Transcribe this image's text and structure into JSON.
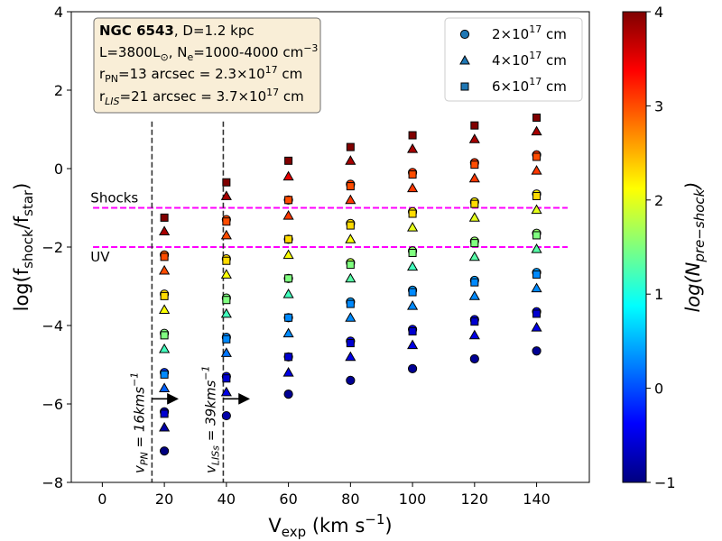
{
  "chart_data": {
    "type": "scatter",
    "xlabel_main": "V",
    "xlabel_sub": "exp",
    "xlabel_unit": " (km s",
    "xlabel_unit_sup": "−1",
    "xlabel_close": ")",
    "ylabel_main": "log(f",
    "ylabel_sub1": "shock",
    "ylabel_mid": "/f",
    "ylabel_sub2": "star",
    "ylabel_close": ")",
    "xlim": [
      -10,
      157
    ],
    "ylim": [
      -8,
      4
    ],
    "xticks": [
      0,
      20,
      40,
      60,
      80,
      100,
      120,
      140
    ],
    "yticks": [
      -8,
      -6,
      -4,
      -2,
      0,
      2,
      4
    ],
    "info_box": {
      "line1_bold": "NGC 6543",
      "line1_rest": ",        D=1.2 kpc",
      "line2": "L=3800L⊙, Ne=1000-4000 cm⁻³",
      "line3": "rPN=13 arcsec  = 2.3×10¹⁷ cm",
      "line4": "rLIS=21 arcsec = 3.7×10¹⁷ cm"
    },
    "legend": [
      {
        "marker": "circle",
        "label_base": "2×10",
        "label_exp": "17",
        "label_unit": " cm"
      },
      {
        "marker": "triangle",
        "label_base": "4×10",
        "label_exp": "17",
        "label_unit": " cm"
      },
      {
        "marker": "square",
        "label_base": "6×10",
        "label_exp": "17",
        "label_unit": " cm"
      }
    ],
    "thresholds": [
      {
        "y": -1,
        "label": "Shocks",
        "color": "#ff00ff"
      },
      {
        "y": -2,
        "label": "UV",
        "color": "#ff00ff"
      }
    ],
    "vlines": [
      {
        "x": 16,
        "label": "vPN = 16kms⁻¹"
      },
      {
        "x": 39,
        "label": "vLISs = 39kms⁻¹"
      }
    ],
    "colorbar": {
      "label": "log(Npre−shock)",
      "range": [
        -1,
        4
      ],
      "ticks": [
        -1,
        0,
        1,
        2,
        3,
        4
      ]
    },
    "series": [
      {
        "marker": "circle",
        "points": [
          [
            20,
            -7.2,
            -1.0
          ],
          [
            20,
            -6.2,
            -0.8
          ],
          [
            20,
            -5.2,
            -0.1
          ],
          [
            20,
            -4.2,
            1.5
          ],
          [
            20,
            -3.2,
            2.3
          ],
          [
            20,
            -2.2,
            2.9
          ],
          [
            40,
            -6.3,
            -0.8
          ],
          [
            40,
            -5.3,
            -0.5
          ],
          [
            40,
            -4.3,
            0.3
          ],
          [
            40,
            -3.3,
            1.5
          ],
          [
            40,
            -2.3,
            2.3
          ],
          [
            40,
            -1.3,
            3.0
          ],
          [
            60,
            -5.75,
            -0.9
          ],
          [
            60,
            -4.8,
            -0.4
          ],
          [
            60,
            -3.8,
            0.4
          ],
          [
            60,
            -2.8,
            1.8
          ],
          [
            60,
            -1.8,
            2.3
          ],
          [
            60,
            -0.8,
            3.1
          ],
          [
            80,
            -5.4,
            -0.9
          ],
          [
            80,
            -4.4,
            -0.5
          ],
          [
            80,
            -3.4,
            0.4
          ],
          [
            80,
            -2.4,
            1.8
          ],
          [
            80,
            -1.4,
            2.3
          ],
          [
            80,
            -0.4,
            3.1
          ],
          [
            100,
            -5.1,
            -0.9
          ],
          [
            100,
            -4.1,
            -0.5
          ],
          [
            100,
            -3.1,
            0.4
          ],
          [
            100,
            -2.1,
            1.6
          ],
          [
            100,
            -1.1,
            2.2
          ],
          [
            100,
            -0.1,
            3.1
          ],
          [
            120,
            -4.85,
            -0.9
          ],
          [
            120,
            -3.85,
            -0.5
          ],
          [
            120,
            -2.85,
            0.4
          ],
          [
            120,
            -1.85,
            1.6
          ],
          [
            120,
            -0.85,
            2.2
          ],
          [
            120,
            0.15,
            3.1
          ],
          [
            140,
            -4.65,
            -0.9
          ],
          [
            140,
            -3.65,
            -0.5
          ],
          [
            140,
            -2.65,
            0.4
          ],
          [
            140,
            -1.65,
            1.6
          ],
          [
            140,
            -0.65,
            2.2
          ],
          [
            140,
            0.35,
            3.1
          ]
        ]
      },
      {
        "marker": "triangle",
        "points": [
          [
            20,
            -6.6,
            -0.8
          ],
          [
            20,
            -5.6,
            0.1
          ],
          [
            20,
            -4.6,
            1.2
          ],
          [
            20,
            -3.6,
            2.1
          ],
          [
            20,
            -2.6,
            3.0
          ],
          [
            20,
            -1.6,
            3.8
          ],
          [
            40,
            -5.7,
            -0.5
          ],
          [
            40,
            -4.7,
            0.2
          ],
          [
            40,
            -3.7,
            1.2
          ],
          [
            40,
            -2.7,
            2.1
          ],
          [
            40,
            -1.7,
            3.0
          ],
          [
            40,
            -0.7,
            3.8
          ],
          [
            60,
            -5.2,
            -0.5
          ],
          [
            60,
            -4.2,
            0.3
          ],
          [
            60,
            -3.2,
            1.2
          ],
          [
            60,
            -2.2,
            2.1
          ],
          [
            60,
            -1.2,
            3.1
          ],
          [
            60,
            -0.2,
            3.5
          ],
          [
            80,
            -4.8,
            -0.5
          ],
          [
            80,
            -3.8,
            0.3
          ],
          [
            80,
            -2.8,
            1.3
          ],
          [
            80,
            -1.8,
            2.1
          ],
          [
            80,
            -0.8,
            3.1
          ],
          [
            80,
            0.2,
            3.8
          ],
          [
            100,
            -4.5,
            -0.5
          ],
          [
            100,
            -3.5,
            0.3
          ],
          [
            100,
            -2.5,
            1.2
          ],
          [
            100,
            -1.5,
            2.0
          ],
          [
            100,
            -0.5,
            3.1
          ],
          [
            100,
            0.5,
            3.8
          ],
          [
            120,
            -4.25,
            -0.5
          ],
          [
            120,
            -3.25,
            0.3
          ],
          [
            120,
            -2.25,
            1.3
          ],
          [
            120,
            -1.25,
            2.0
          ],
          [
            120,
            -0.25,
            3.1
          ],
          [
            120,
            0.75,
            3.8
          ],
          [
            140,
            -4.05,
            -0.5
          ],
          [
            140,
            -3.05,
            0.3
          ],
          [
            140,
            -2.05,
            1.3
          ],
          [
            140,
            -1.05,
            2.0
          ],
          [
            140,
            -0.05,
            3.1
          ],
          [
            140,
            0.95,
            3.8
          ]
        ]
      },
      {
        "marker": "square",
        "points": [
          [
            20,
            -6.25,
            -0.6
          ],
          [
            20,
            -5.25,
            0.3
          ],
          [
            20,
            -4.25,
            1.5
          ],
          [
            20,
            -3.25,
            2.3
          ],
          [
            20,
            -2.25,
            3.0
          ],
          [
            20,
            -1.25,
            4.0
          ],
          [
            40,
            -5.35,
            -0.6
          ],
          [
            40,
            -4.35,
            0.3
          ],
          [
            40,
            -3.35,
            1.5
          ],
          [
            40,
            -2.35,
            2.3
          ],
          [
            40,
            -1.35,
            3.0
          ],
          [
            40,
            -0.35,
            4.0
          ],
          [
            60,
            -4.8,
            -0.6
          ],
          [
            60,
            -3.8,
            0.3
          ],
          [
            60,
            -2.8,
            1.5
          ],
          [
            60,
            -1.8,
            2.3
          ],
          [
            60,
            -0.8,
            3.0
          ],
          [
            60,
            0.2,
            4.0
          ],
          [
            80,
            -4.45,
            -0.6
          ],
          [
            80,
            -3.45,
            0.3
          ],
          [
            80,
            -2.45,
            1.5
          ],
          [
            80,
            -1.45,
            2.3
          ],
          [
            80,
            -0.45,
            3.0
          ],
          [
            80,
            0.55,
            4.0
          ],
          [
            100,
            -4.15,
            -0.6
          ],
          [
            100,
            -3.15,
            0.3
          ],
          [
            100,
            -2.15,
            1.5
          ],
          [
            100,
            -1.15,
            2.3
          ],
          [
            100,
            -0.15,
            3.0
          ],
          [
            100,
            0.85,
            4.0
          ],
          [
            120,
            -3.9,
            -0.6
          ],
          [
            120,
            -2.9,
            0.3
          ],
          [
            120,
            -1.9,
            1.5
          ],
          [
            120,
            -0.9,
            2.3
          ],
          [
            120,
            0.1,
            3.0
          ],
          [
            120,
            1.1,
            4.0
          ],
          [
            140,
            -3.7,
            -0.6
          ],
          [
            140,
            -2.7,
            0.3
          ],
          [
            140,
            -1.7,
            1.5
          ],
          [
            140,
            -0.7,
            2.3
          ],
          [
            140,
            0.3,
            3.0
          ],
          [
            140,
            1.3,
            4.0
          ]
        ]
      }
    ]
  }
}
